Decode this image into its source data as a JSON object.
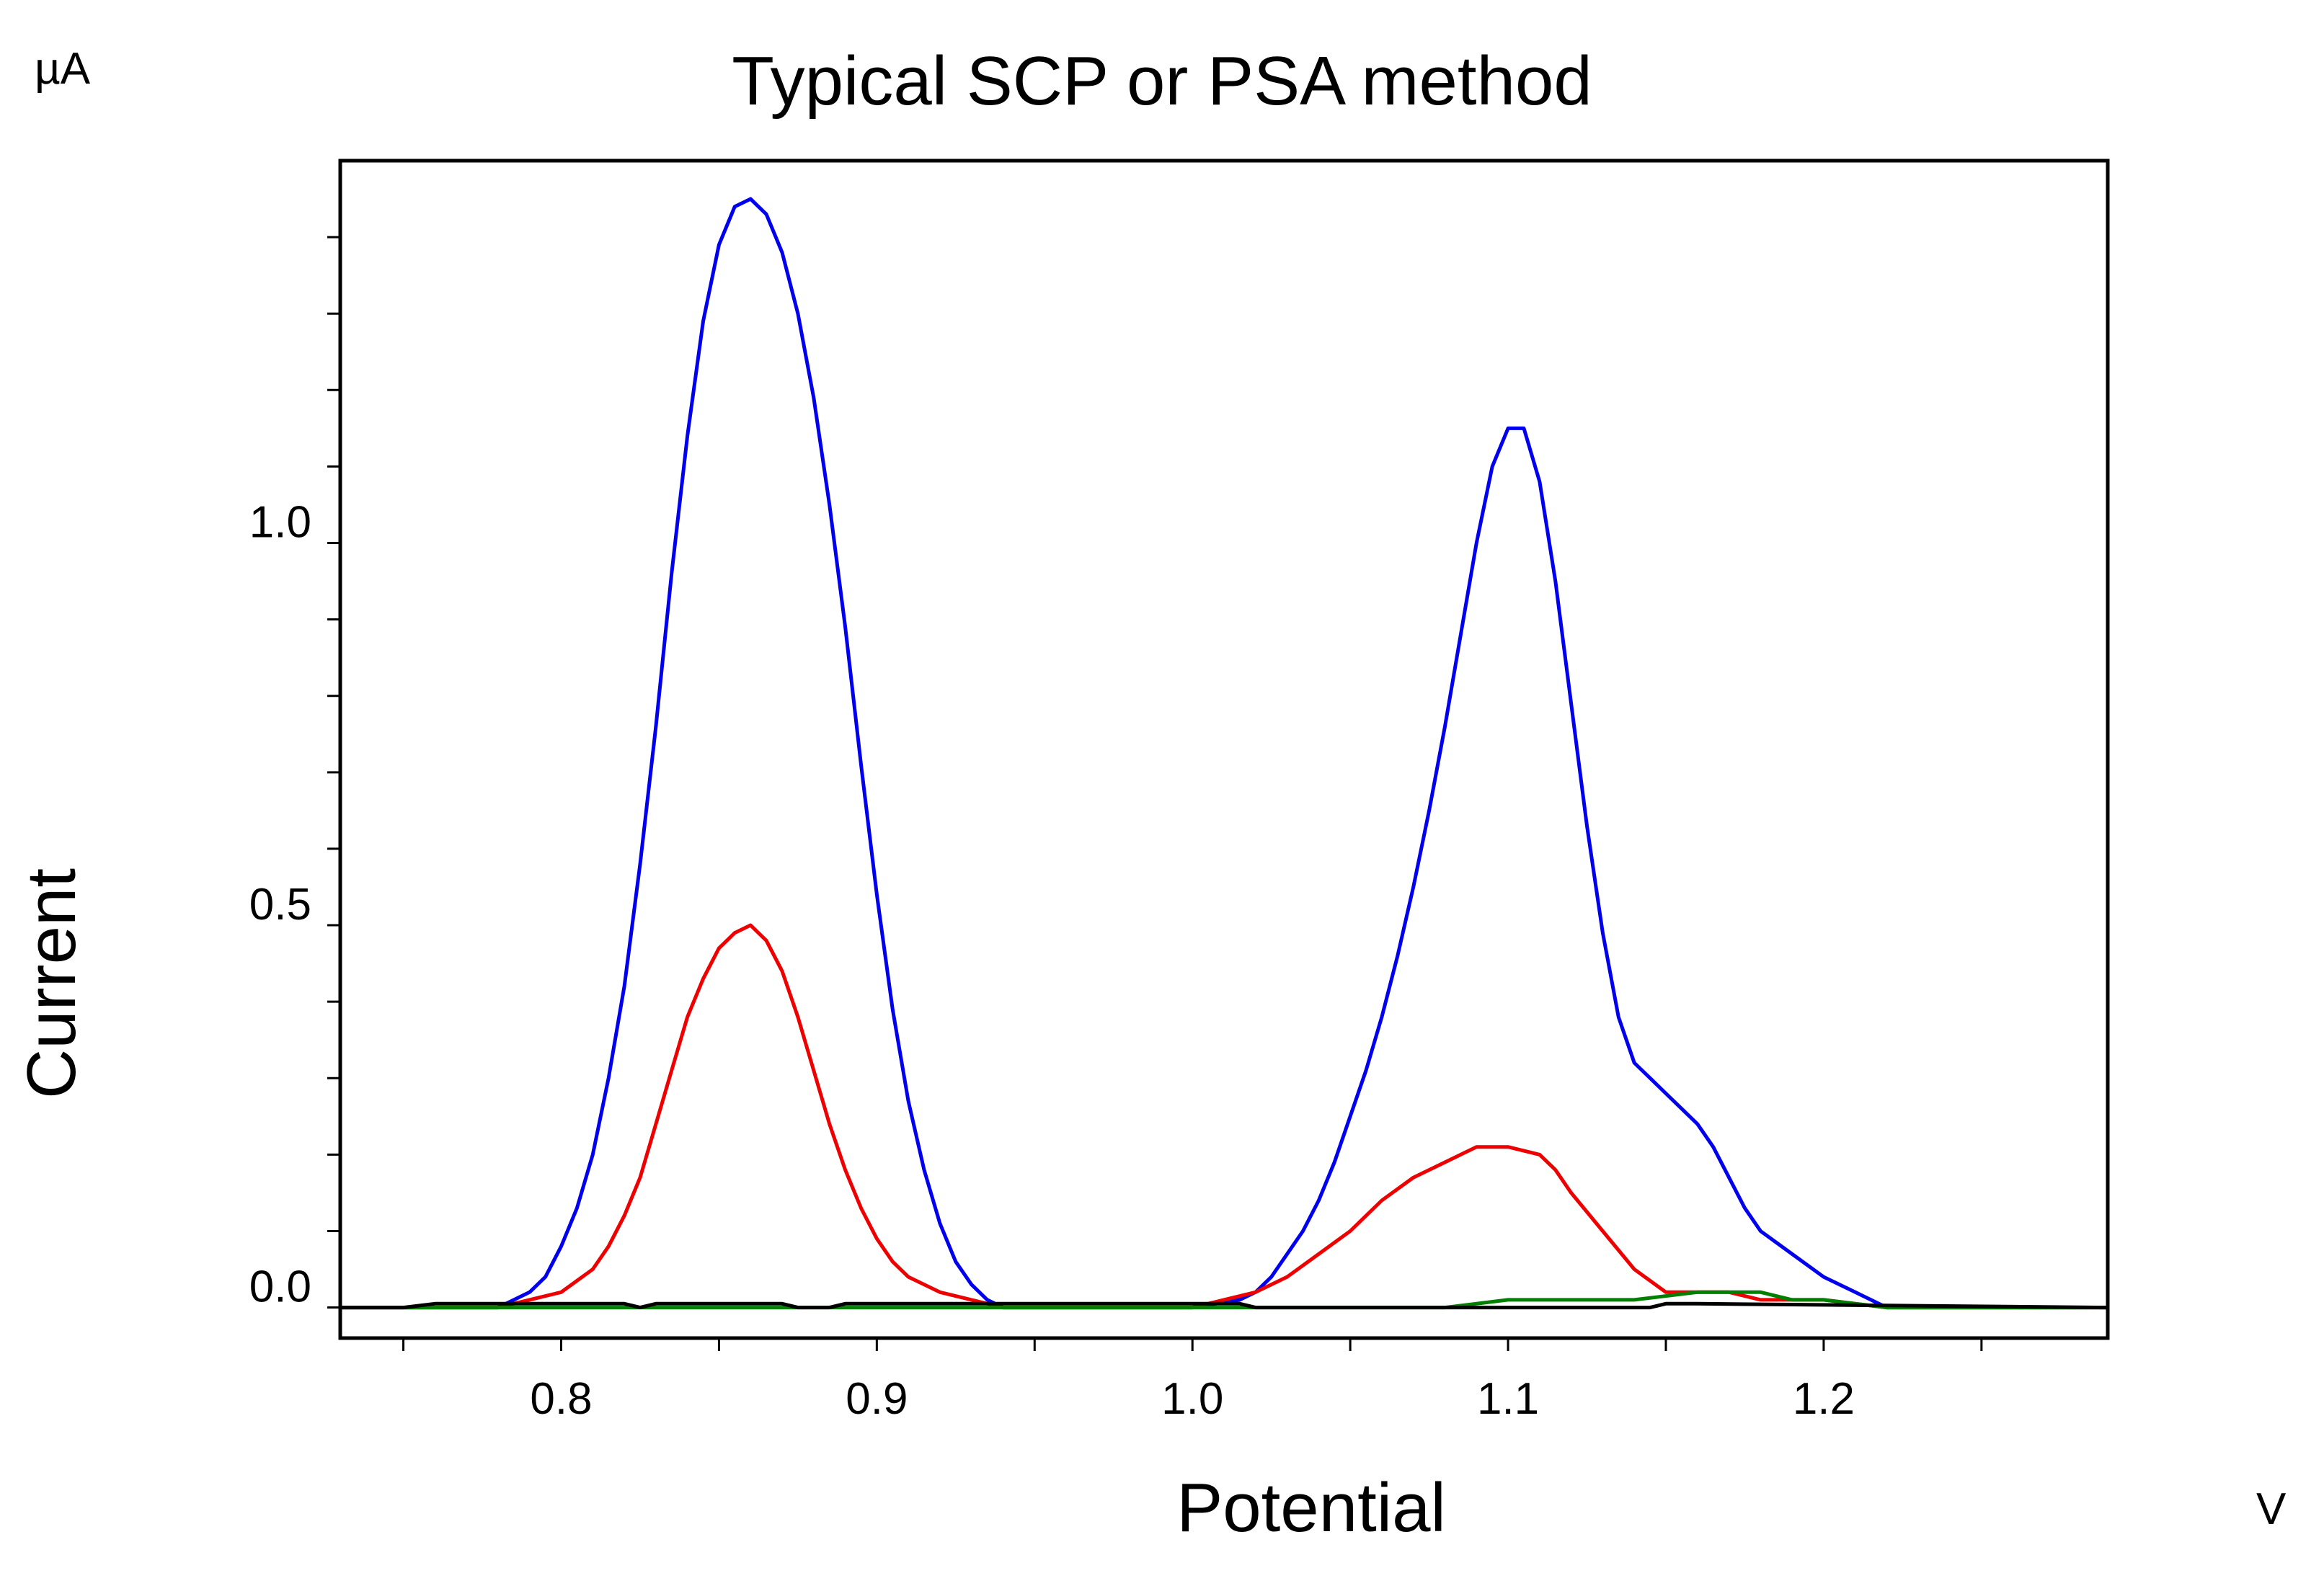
{
  "chart_data": {
    "type": "line",
    "title": "Typical SCP or PSA method",
    "xlabel": "Potential",
    "ylabel": "Current",
    "x_unit": "V",
    "y_unit": "µA",
    "xlim": [
      0.73,
      1.29
    ],
    "ylim": [
      -0.04,
      1.5
    ],
    "x_ticks": [
      {
        "value": 0.8,
        "label": "0.8"
      },
      {
        "value": 0.9,
        "label": "0.9"
      },
      {
        "value": 1.0,
        "label": "1.0"
      },
      {
        "value": 1.1,
        "label": "1.1"
      },
      {
        "value": 1.2,
        "label": "1.2"
      }
    ],
    "x_minor_ticks": [
      0.75,
      0.85,
      0.95,
      1.05,
      1.15,
      1.25
    ],
    "y_ticks": [
      {
        "value": 0.0,
        "label": "0.0"
      },
      {
        "value": 0.5,
        "label": "0.5"
      },
      {
        "value": 1.0,
        "label": "1.0"
      }
    ],
    "y_minor_ticks": [
      0.1,
      0.2,
      0.3,
      0.4,
      0.6,
      0.7,
      0.8,
      0.9,
      1.1,
      1.2,
      1.3,
      1.4
    ],
    "grid": false,
    "legend": "none",
    "series": [
      {
        "color": "#0000ee",
        "x": [
          0.73,
          0.78,
          0.79,
          0.795,
          0.8,
          0.805,
          0.81,
          0.815,
          0.82,
          0.825,
          0.83,
          0.835,
          0.84,
          0.845,
          0.85,
          0.855,
          0.86,
          0.865,
          0.87,
          0.875,
          0.88,
          0.885,
          0.89,
          0.895,
          0.9,
          0.905,
          0.91,
          0.915,
          0.92,
          0.925,
          0.93,
          0.935,
          0.94,
          0.95,
          1.0,
          1.015,
          1.02,
          1.025,
          1.03,
          1.035,
          1.04,
          1.045,
          1.05,
          1.055,
          1.06,
          1.065,
          1.07,
          1.075,
          1.08,
          1.085,
          1.09,
          1.095,
          1.1,
          1.105,
          1.11,
          1.115,
          1.12,
          1.125,
          1.13,
          1.135,
          1.14,
          1.145,
          1.15,
          1.155,
          1.16,
          1.165,
          1.17,
          1.175,
          1.18,
          1.19,
          1.2,
          1.21,
          1.22,
          1.23,
          1.24,
          1.25,
          1.26,
          1.27,
          1.28,
          1.29
        ],
        "y": [
          0.0,
          0.0,
          0.02,
          0.04,
          0.08,
          0.13,
          0.2,
          0.3,
          0.42,
          0.58,
          0.76,
          0.96,
          1.14,
          1.29,
          1.39,
          1.44,
          1.45,
          1.43,
          1.38,
          1.3,
          1.19,
          1.05,
          0.89,
          0.71,
          0.54,
          0.39,
          0.27,
          0.18,
          0.11,
          0.06,
          0.03,
          0.01,
          0.0,
          0.0,
          0.0,
          0.01,
          0.02,
          0.04,
          0.07,
          0.1,
          0.14,
          0.19,
          0.25,
          0.31,
          0.38,
          0.46,
          0.55,
          0.65,
          0.76,
          0.88,
          1.0,
          1.1,
          1.15,
          1.15,
          1.08,
          0.95,
          0.79,
          0.63,
          0.49,
          0.38,
          0.32,
          0.3,
          0.28,
          0.26,
          0.24,
          0.21,
          0.17,
          0.13,
          0.1,
          0.07,
          0.04,
          0.02,
          0.0,
          0.0,
          0.0,
          0.0,
          0.0,
          0.0,
          0.0,
          0.0
        ]
      },
      {
        "color": "#ee0000",
        "x": [
          0.73,
          0.78,
          0.79,
          0.8,
          0.81,
          0.815,
          0.82,
          0.825,
          0.83,
          0.835,
          0.84,
          0.845,
          0.85,
          0.855,
          0.86,
          0.865,
          0.87,
          0.875,
          0.88,
          0.885,
          0.89,
          0.895,
          0.9,
          0.905,
          0.91,
          0.92,
          0.93,
          0.94,
          1.0,
          1.02,
          1.03,
          1.04,
          1.05,
          1.06,
          1.07,
          1.08,
          1.09,
          1.1,
          1.11,
          1.115,
          1.12,
          1.13,
          1.14,
          1.15,
          1.16,
          1.17,
          1.18,
          1.2,
          1.22,
          1.24,
          1.26,
          1.29
        ],
        "y": [
          0.0,
          0.0,
          0.01,
          0.02,
          0.05,
          0.08,
          0.12,
          0.17,
          0.24,
          0.31,
          0.38,
          0.43,
          0.47,
          0.49,
          0.5,
          0.48,
          0.44,
          0.38,
          0.31,
          0.24,
          0.18,
          0.13,
          0.09,
          0.06,
          0.04,
          0.02,
          0.01,
          0.0,
          0.0,
          0.02,
          0.04,
          0.07,
          0.1,
          0.14,
          0.17,
          0.19,
          0.21,
          0.21,
          0.2,
          0.18,
          0.15,
          0.1,
          0.05,
          0.02,
          0.02,
          0.02,
          0.01,
          0.01,
          0.0,
          0.0,
          0.0,
          0.0
        ]
      },
      {
        "color": "#008000",
        "x": [
          0.73,
          1.05,
          1.08,
          1.1,
          1.14,
          1.16,
          1.18,
          1.19,
          1.2,
          1.22,
          1.29
        ],
        "y": [
          0.0,
          0.0,
          0.0,
          0.01,
          0.01,
          0.02,
          0.02,
          0.01,
          0.01,
          0.0,
          0.0
        ]
      },
      {
        "color": "#000000",
        "x": [
          0.73,
          0.75,
          0.76,
          0.77,
          0.82,
          0.825,
          0.83,
          0.87,
          0.875,
          0.885,
          0.89,
          1.015,
          1.02,
          1.03,
          1.14,
          1.145,
          1.15,
          1.16,
          1.29
        ],
        "y": [
          0.0,
          0.0,
          0.005,
          0.005,
          0.005,
          0.0,
          0.005,
          0.005,
          0.0,
          0.0,
          0.005,
          0.005,
          0.0,
          0.0,
          0.0,
          0.0,
          0.005,
          0.005,
          0.0
        ]
      }
    ]
  }
}
